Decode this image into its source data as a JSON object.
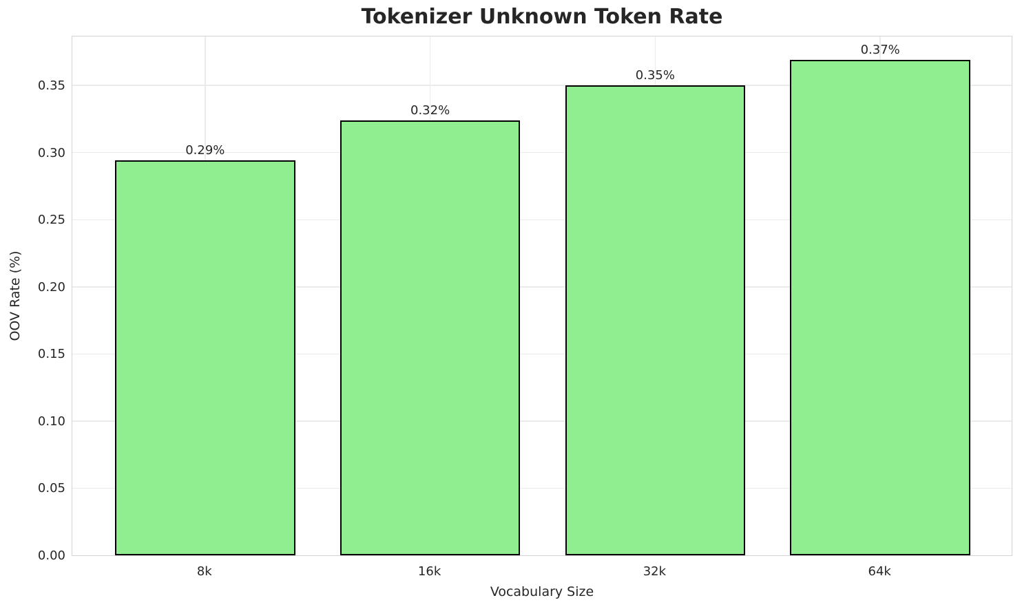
{
  "chart_data": {
    "type": "bar",
    "title": "Tokenizer Unknown Token Rate",
    "xlabel": "Vocabulary Size",
    "ylabel": "OOV Rate (%)",
    "categories": [
      "8k",
      "16k",
      "32k",
      "64k"
    ],
    "values": [
      0.294,
      0.324,
      0.35,
      0.369
    ],
    "bar_labels": [
      "0.29%",
      "0.32%",
      "0.35%",
      "0.37%"
    ],
    "yticks": [
      0.0,
      0.05,
      0.1,
      0.15,
      0.2,
      0.25,
      0.3,
      0.35
    ],
    "ytick_labels": [
      "0.00",
      "0.05",
      "0.10",
      "0.15",
      "0.20",
      "0.25",
      "0.30",
      "0.35"
    ],
    "ylim": [
      0,
      0.3875
    ],
    "grid": true,
    "legend": null,
    "colors": {
      "bar_fill": "#90ee90",
      "bar_edge": "#000000",
      "grid": "#ebebeb",
      "spine": "#d3d3d3",
      "text": "#262626",
      "background": "#ffffff"
    }
  }
}
